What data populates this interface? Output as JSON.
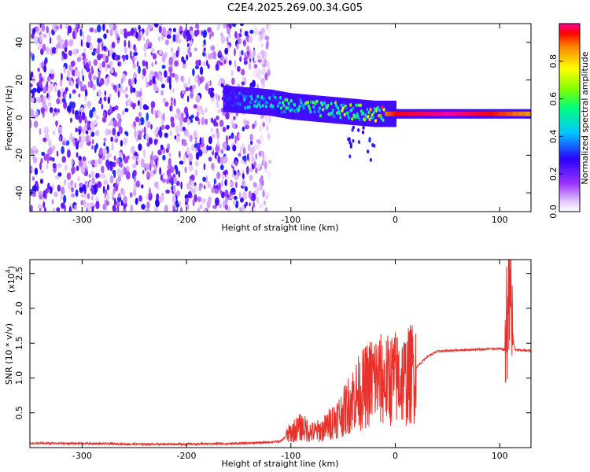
{
  "title": "C2E4.2025.269.00.34.G05",
  "chart_data": [
    {
      "type": "heatmap",
      "xlabel": "Height of straight line (km)",
      "ylabel": "Frequency (Hz)",
      "xlim": [
        -350,
        130
      ],
      "ylim": [
        -50,
        50
      ],
      "xticks": [
        -300,
        -200,
        -100,
        0,
        100
      ],
      "yticks": [
        -40,
        -20,
        0,
        20,
        40
      ],
      "grid": false,
      "noise_region": {
        "x_range": [
          -350,
          -135
        ],
        "y_range": [
          -50,
          50
        ],
        "mean_amplitude": 0.15
      },
      "tracked_signal": [
        {
          "x": -165,
          "freq": 10,
          "amplitude": 0.3
        },
        {
          "x": -140,
          "freq": 9,
          "amplitude": 0.45
        },
        {
          "x": -120,
          "freq": 8,
          "amplitude": 0.5
        },
        {
          "x": -100,
          "freq": 6,
          "amplitude": 0.55
        },
        {
          "x": -80,
          "freq": 5,
          "amplitude": 0.6
        },
        {
          "x": -60,
          "freq": 4,
          "amplitude": 0.65
        },
        {
          "x": -40,
          "freq": 3,
          "amplitude": 0.7
        },
        {
          "x": -20,
          "freq": 2,
          "amplitude": 0.8
        },
        {
          "x": 0,
          "freq": 2,
          "amplitude": 0.95
        },
        {
          "x": 50,
          "freq": 2,
          "amplitude": 1.0
        },
        {
          "x": 90,
          "freq": 2,
          "amplitude": 0.95
        },
        {
          "x": 110,
          "freq": 2,
          "amplitude": 0.9
        },
        {
          "x": 130,
          "freq": 2,
          "amplitude": 0.85
        }
      ],
      "colorbar": {
        "label": "Normalized spectral amplitude",
        "range": [
          0,
          1
        ],
        "ticks": [
          "0.0",
          "0.2",
          "0.4",
          "0.6",
          "0.8"
        ]
      }
    },
    {
      "type": "line",
      "xlabel": "Height of straight line (km)",
      "ylabel": "SNR (10 * v/v)",
      "scale_label": "(x10",
      "scale_exp": "4",
      "scale_close": ")",
      "xlim": [
        -350,
        130
      ],
      "ylim": [
        0,
        27000
      ],
      "xticks": [
        -300,
        -200,
        -100,
        0,
        100
      ],
      "yticks": [
        {
          "value": 5000,
          "label": "0.5"
        },
        {
          "value": 10000,
          "label": "1.0"
        },
        {
          "value": 15000,
          "label": "1.5"
        },
        {
          "value": 20000,
          "label": "2.0"
        },
        {
          "value": 25000,
          "label": "2.5"
        }
      ],
      "grid": false,
      "color": "#e8312a",
      "series": [
        {
          "x": [
            -350,
            -300,
            -250,
            -200,
            -150,
            -130,
            -110,
            -100,
            -90,
            -80,
            -70,
            -60,
            -50,
            -40,
            -30,
            -20,
            -10,
            0,
            10,
            20,
            30,
            40,
            60,
            80,
            95,
            100,
            105,
            108,
            110,
            112,
            115,
            120,
            130
          ],
          "values": [
            600,
            600,
            500,
            500,
            600,
            700,
            900,
            2200,
            3000,
            2200,
            2500,
            3800,
            5000,
            7200,
            8500,
            10000,
            9500,
            10000,
            9800,
            11500,
            13000,
            13800,
            14000,
            14100,
            14200,
            14200,
            14000,
            20000,
            27000,
            16000,
            14000,
            14000,
            13900
          ]
        }
      ]
    }
  ]
}
